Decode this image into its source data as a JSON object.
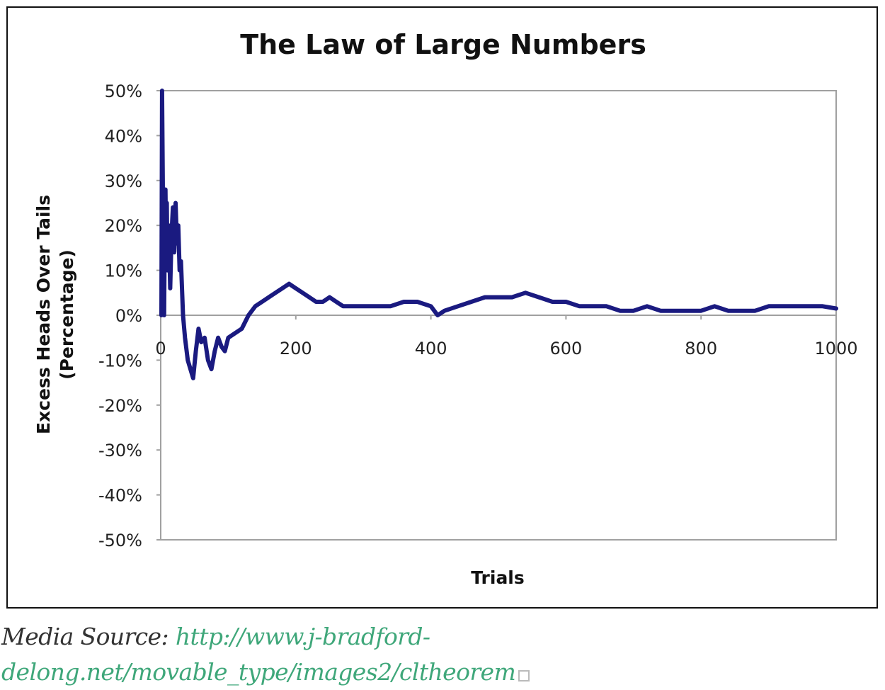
{
  "chart_data": {
    "type": "line",
    "title": "The Law of Large Numbers",
    "xlabel": "Trials",
    "ylabel": "Excess Heads Over Tails",
    "ylabel_line2": "(Percentage)",
    "xlim": [
      0,
      1000
    ],
    "ylim": [
      -50,
      50
    ],
    "x_ticks": [
      "0",
      "200",
      "400",
      "600",
      "800",
      "1000"
    ],
    "y_ticks": [
      "50%",
      "40%",
      "30%",
      "20%",
      "10%",
      "0%",
      "-10%",
      "-20%",
      "-30%",
      "-40%",
      "-50%"
    ],
    "grid": false,
    "legend": "none",
    "line_color": "#1a1a80",
    "series": [
      {
        "x": [
          1,
          2,
          3,
          4,
          5,
          6,
          7,
          8,
          9,
          10,
          12,
          14,
          16,
          18,
          20,
          22,
          24,
          26,
          28,
          30,
          33,
          36,
          40,
          44,
          48,
          52,
          56,
          60,
          65,
          70,
          75,
          80,
          85,
          90,
          95,
          100,
          110,
          120,
          130,
          140,
          150,
          160,
          170,
          180,
          190,
          200,
          210,
          220,
          230,
          240,
          250,
          260,
          270,
          280,
          300,
          320,
          340,
          360,
          380,
          400,
          410,
          420,
          440,
          460,
          480,
          500,
          520,
          540,
          560,
          580,
          600,
          620,
          640,
          660,
          680,
          700,
          720,
          740,
          760,
          780,
          800,
          820,
          840,
          860,
          880,
          900,
          920,
          940,
          960,
          980,
          1000
        ],
        "values": [
          0,
          50,
          30,
          5,
          0,
          20,
          28,
          15,
          25,
          10,
          20,
          6,
          18,
          24,
          14,
          25,
          16,
          20,
          10,
          12,
          0,
          -5,
          -10,
          -12,
          -14,
          -8,
          -3,
          -6,
          -5,
          -10,
          -12,
          -8,
          -5,
          -7,
          -8,
          -5,
          -4,
          -3,
          0,
          2,
          3,
          4,
          5,
          6,
          7,
          6,
          5,
          4,
          3,
          3,
          4,
          3,
          2,
          2,
          2,
          2,
          2,
          3,
          3,
          2,
          0,
          1,
          2,
          3,
          4,
          4,
          4,
          5,
          4,
          3,
          3,
          2,
          2,
          2,
          1,
          1,
          2,
          1,
          1,
          1,
          1,
          2,
          1,
          1,
          1,
          2,
          2,
          2,
          2,
          2,
          1.5
        ]
      }
    ]
  },
  "caption": {
    "prefix": "Media Source: ",
    "link_text": "http://www.j-bradford-delong.net/movable_type/images2/cltheorem"
  }
}
